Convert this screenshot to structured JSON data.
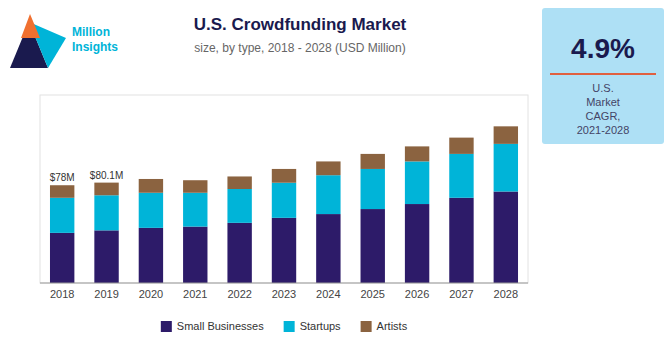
{
  "chart_data": {
    "type": "bar",
    "stacked": true,
    "title": "U.S. Crowdfunding Market",
    "subtitle": "size, by type, 2018 - 2028 (USD Million)",
    "categories": [
      "2018",
      "2019",
      "2020",
      "2021",
      "2022",
      "2023",
      "2024",
      "2025",
      "2026",
      "2027",
      "2028"
    ],
    "series": [
      {
        "name": "Small Businesses",
        "color": "#2d1b69",
        "values": [
          40,
          42,
          44,
          45,
          48,
          52,
          55,
          59,
          63,
          68,
          73
        ]
      },
      {
        "name": "Startups",
        "color": "#00b4d8",
        "values": [
          28,
          28,
          28,
          27,
          27,
          28,
          31,
          32,
          34,
          35,
          38
        ]
      },
      {
        "name": "Artists",
        "color": "#8b6340",
        "values": [
          10,
          10.1,
          11,
          10,
          10,
          11,
          11,
          12,
          12,
          13,
          14
        ]
      }
    ],
    "ylim": [
      0,
      150
    ],
    "tick_labels": "x",
    "grid": false,
    "legend": "bottom",
    "annotations": [
      {
        "text": "$78M",
        "x": "2018",
        "y": 78
      },
      {
        "text": "$80.1M",
        "x": "2019",
        "y": 80.1
      },
      {
        "text": "4.9%"
      },
      {
        "text": "U.S.\nMarket\nCAGR,\n2021-2028"
      },
      {
        "text": "Million\nInsights"
      }
    ]
  }
}
